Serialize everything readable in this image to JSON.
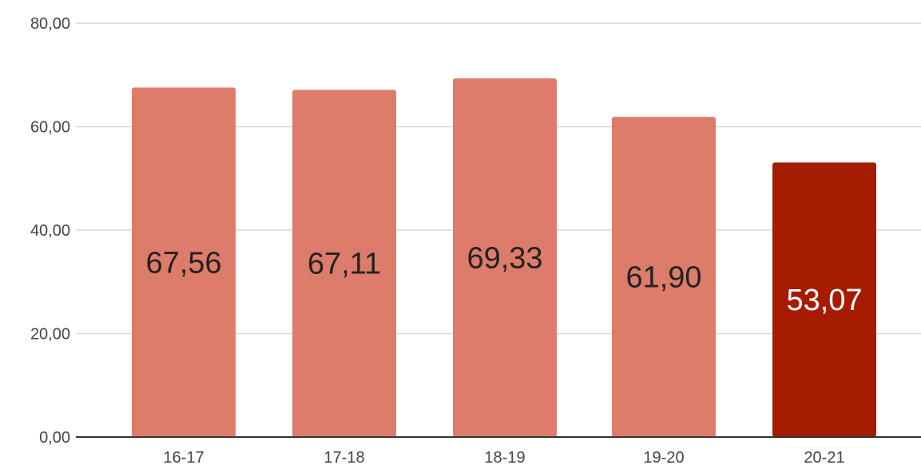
{
  "chart_data": {
    "type": "bar",
    "title": "",
    "xlabel": "",
    "ylabel": "",
    "categories": [
      "16-17",
      "17-18",
      "18-19",
      "19-20",
      "20-21"
    ],
    "values": [
      67.56,
      67.11,
      69.33,
      61.9,
      53.07
    ],
    "value_labels": [
      "67,56",
      "67,11",
      "69,33",
      "61,90",
      "53,07"
    ],
    "ylim": [
      0,
      80
    ],
    "y_ticks": [
      0,
      20,
      40,
      60,
      80
    ],
    "y_tick_labels": [
      "0,00",
      "20,00",
      "40,00",
      "60,00",
      "80,00"
    ],
    "grid": true,
    "legend": "none",
    "colors": {
      "bar_default": "#dd7c6a",
      "bar_highlight": "#a61c00",
      "label_default": "#222222",
      "label_highlight": "#ffffff",
      "gridline": "#d9d9d9",
      "axis": "#333333"
    },
    "highlight_index": 4
  }
}
